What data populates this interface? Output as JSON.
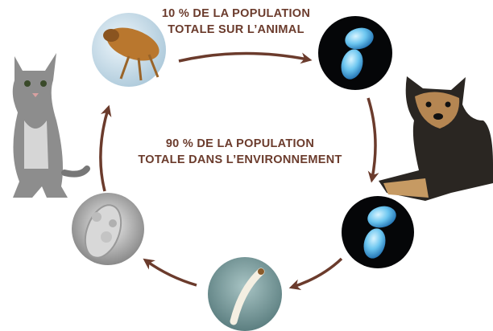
{
  "captions": {
    "animal": [
      "10 % DE LA POPULATION",
      "TOTALE SUR L’ANIMAL"
    ],
    "environment": [
      "90 % DE LA POPULATION",
      "TOTALE DANS L’ENVIRONNEMENT"
    ]
  }
}
